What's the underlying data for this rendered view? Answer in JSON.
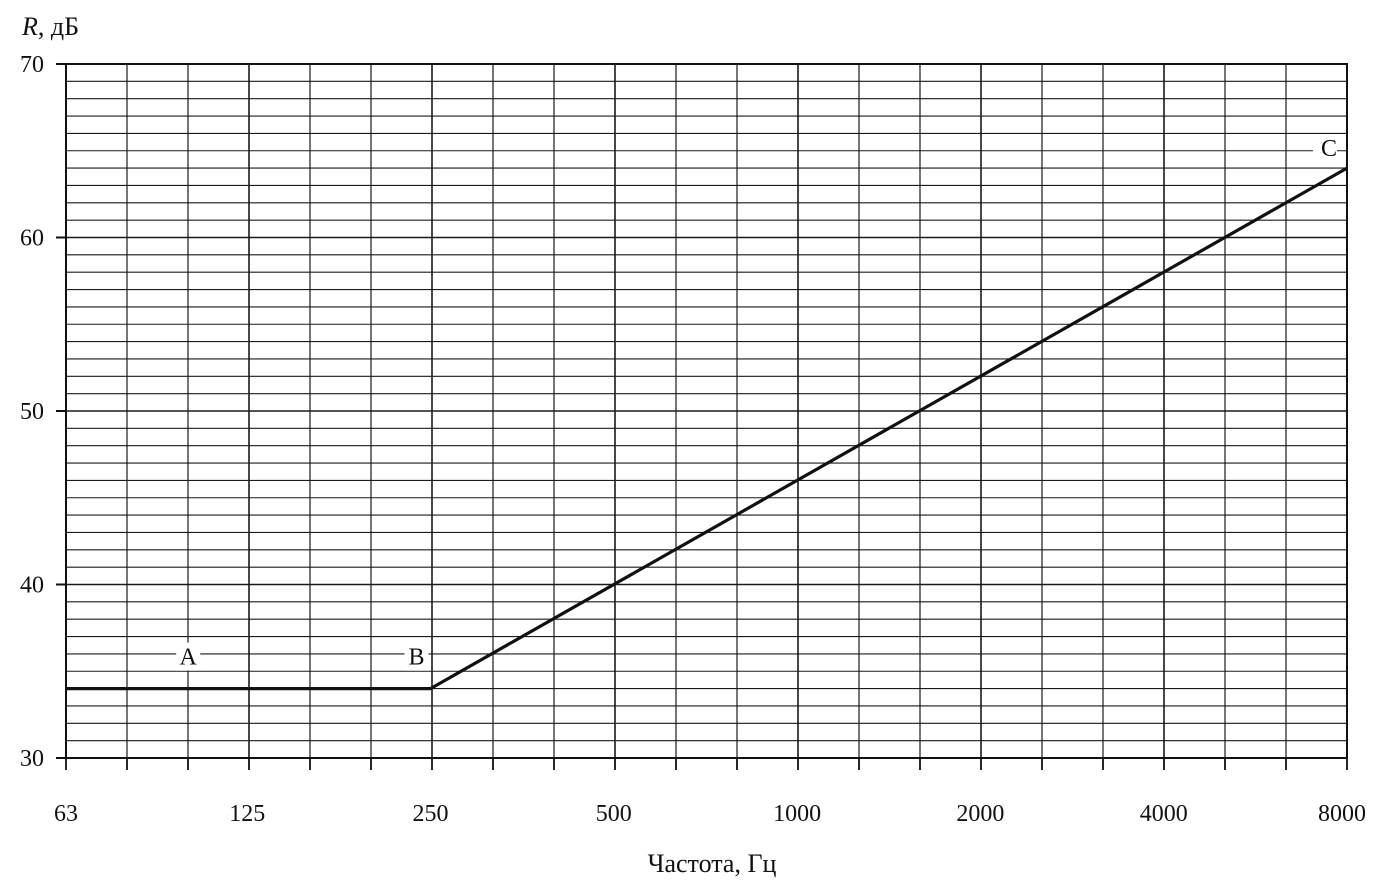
{
  "chart_data": {
    "type": "line",
    "ylabel": {
      "symbol": "R",
      "unit": ", дБ"
    },
    "xlabel": "Частота, Гц",
    "x_scale": "log2",
    "xlim": [
      63,
      8000
    ],
    "ylim": [
      30,
      70
    ],
    "grid": true,
    "x_ticks": [
      63,
      125,
      250,
      500,
      1000,
      2000,
      4000,
      8000
    ],
    "x_tick_labels": [
      "63",
      "125",
      "250",
      "500",
      "1000",
      "2000",
      "4000",
      "8000"
    ],
    "y_ticks": [
      30,
      40,
      50,
      60,
      70
    ],
    "y_tick_labels": [
      "30",
      "40",
      "50",
      "60",
      "70"
    ],
    "series": [
      {
        "x": [
          63,
          100,
          250,
          8000
        ],
        "y": [
          34,
          34,
          34,
          64
        ],
        "color": "#111111"
      }
    ],
    "points": [
      {
        "label": "A",
        "x": 100,
        "y": 34
      },
      {
        "label": "B",
        "x": 250,
        "y": 34
      },
      {
        "label": "C",
        "x": 8000,
        "y": 64
      }
    ]
  }
}
